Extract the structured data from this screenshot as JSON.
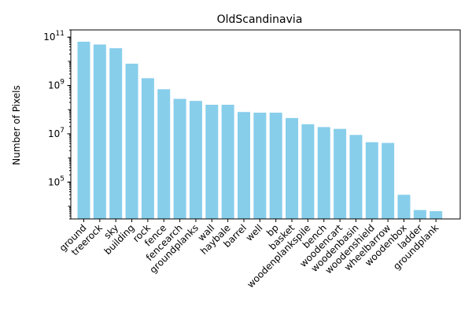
{
  "chart_data": {
    "type": "bar",
    "title": "OldScandinavia",
    "xlabel": "",
    "ylabel": "Number of Pixels",
    "yscale": "log",
    "ylim": [
      3000,
      200000000000
    ],
    "ytick_values": [
      100000,
      10000000,
      1000000000,
      100000000000
    ],
    "ytick_labels": [
      {
        "base": "10",
        "exp": "5"
      },
      {
        "base": "10",
        "exp": "7"
      },
      {
        "base": "10",
        "exp": "9"
      },
      {
        "base": "10",
        "exp": "11"
      }
    ],
    "bar_color": "#87ceeb",
    "categories": [
      "ground",
      "treerock",
      "sky",
      "building",
      "rock",
      "fence",
      "fencearch",
      "groundplanks",
      "wall",
      "haybale",
      "barrel",
      "well",
      "bp",
      "basket",
      "woodenplankspile",
      "bench",
      "woodencart",
      "woodenbasin",
      "woodenshield",
      "wheelbarrow",
      "woodenbox",
      "ladder",
      "groundplank"
    ],
    "values": [
      65000000000,
      50000000000,
      35000000000,
      8000000000,
      2000000000,
      700000000,
      280000000,
      230000000,
      160000000,
      160000000,
      80000000,
      75000000,
      75000000,
      45000000,
      25000000,
      19000000,
      16000000,
      9000000,
      4500000,
      4200000,
      30000,
      7000,
      6300
    ]
  }
}
